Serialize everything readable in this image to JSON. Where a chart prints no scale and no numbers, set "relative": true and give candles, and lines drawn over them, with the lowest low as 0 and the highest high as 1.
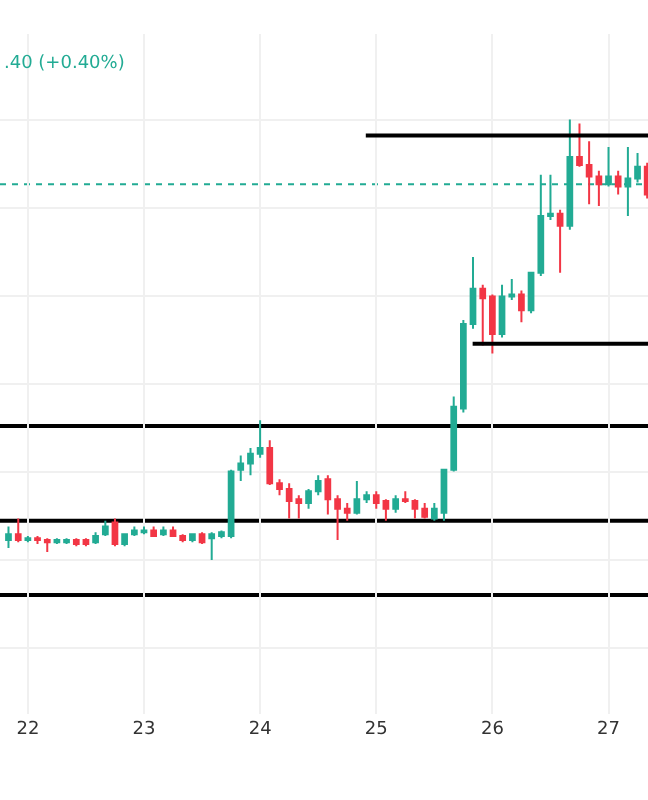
{
  "chart_data": {
    "type": "candlestick",
    "relative": true,
    "grid": true,
    "annotations": [
      ".40 (+0.40%)"
    ],
    "xlim": [
      21.76,
      27.34
    ],
    "xticks": [
      22,
      23,
      24,
      25,
      26,
      27
    ],
    "x": [
      21.833,
      21.917,
      22.0,
      22.083,
      22.167,
      22.25,
      22.333,
      22.417,
      22.5,
      22.583,
      22.667,
      22.75,
      22.833,
      22.917,
      23.0,
      23.083,
      23.167,
      23.25,
      23.333,
      23.417,
      23.5,
      23.583,
      23.667,
      23.75,
      23.833,
      23.917,
      24.0,
      24.083,
      24.167,
      24.25,
      24.333,
      24.417,
      24.5,
      24.583,
      24.667,
      24.75,
      24.833,
      24.917,
      25.0,
      25.083,
      25.167,
      25.25,
      25.333,
      25.417,
      25.5,
      25.583,
      25.667,
      25.75,
      25.833,
      25.917,
      26.0,
      26.083,
      26.167,
      26.25,
      26.333,
      26.417,
      26.5,
      26.583,
      26.667,
      26.75,
      26.833,
      26.917,
      27.0,
      27.083,
      27.167,
      27.25,
      27.333
    ],
    "colors": [
      "#22ab94",
      "#f23645",
      "#22ab94",
      "#f23645",
      "#f23645",
      "#22ab94",
      "#22ab94",
      "#f23645",
      "#f23645",
      "#22ab94",
      "#22ab94",
      "#f23645",
      "#22ab94",
      "#22ab94",
      "#22ab94",
      "#f23645",
      "#22ab94",
      "#f23645",
      "#f23645",
      "#22ab94",
      "#f23645",
      "#22ab94",
      "#22ab94",
      "#22ab94",
      "#22ab94",
      "#22ab94",
      "#22ab94",
      "#f23645",
      "#f23645",
      "#f23645",
      "#f23645",
      "#22ab94",
      "#22ab94",
      "#f23645",
      "#f23645",
      "#f23645",
      "#22ab94",
      "#22ab94",
      "#f23645",
      "#f23645",
      "#22ab94",
      "#f23645",
      "#f23645",
      "#f23645",
      "#22ab94",
      "#22ab94",
      "#22ab94",
      "#22ab94",
      "#22ab94",
      "#f23645",
      "#f23645",
      "#22ab94",
      "#22ab94",
      "#f23645",
      "#22ab94",
      "#22ab94",
      "#22ab94",
      "#f23645",
      "#22ab94",
      "#f23645",
      "#f23645",
      "#f23645",
      "#22ab94",
      "#f23645",
      "#22ab94",
      "#22ab94",
      "#f23645"
    ],
    "ohlc": [
      [
        0.045,
        0.076,
        0.027,
        0.058
      ],
      [
        0.058,
        0.094,
        0.04,
        0.045
      ],
      [
        0.045,
        0.054,
        0.04,
        0.049
      ],
      [
        0.049,
        0.054,
        0.036,
        0.045
      ],
      [
        0.045,
        0.049,
        0.018,
        0.04
      ],
      [
        0.04,
        0.049,
        0.036,
        0.045
      ],
      [
        0.04,
        0.049,
        0.036,
        0.045
      ],
      [
        0.045,
        0.049,
        0.031,
        0.036
      ],
      [
        0.045,
        0.049,
        0.031,
        0.036
      ],
      [
        0.04,
        0.063,
        0.036,
        0.054
      ],
      [
        0.058,
        0.089,
        0.054,
        0.076
      ],
      [
        0.085,
        0.094,
        0.031,
        0.036
      ],
      [
        0.036,
        0.058,
        0.031,
        0.058
      ],
      [
        0.058,
        0.076,
        0.054,
        0.067
      ],
      [
        0.063,
        0.076,
        0.058,
        0.067
      ],
      [
        0.067,
        0.076,
        0.054,
        0.054
      ],
      [
        0.058,
        0.076,
        0.054,
        0.067
      ],
      [
        0.067,
        0.076,
        0.054,
        0.054
      ],
      [
        0.054,
        0.058,
        0.04,
        0.045
      ],
      [
        0.045,
        0.058,
        0.04,
        0.058
      ],
      [
        0.058,
        0.063,
        0.036,
        0.04
      ],
      [
        0.049,
        0.063,
        0.0,
        0.058
      ],
      [
        0.054,
        0.067,
        0.049,
        0.063
      ],
      [
        0.054,
        0.205,
        0.049,
        0.201
      ],
      [
        0.205,
        0.237,
        0.179,
        0.219
      ],
      [
        0.219,
        0.254,
        0.192,
        0.241
      ],
      [
        0.241,
        0.317,
        0.232,
        0.254
      ],
      [
        0.254,
        0.272,
        0.17,
        0.174
      ],
      [
        0.174,
        0.183,
        0.147,
        0.161
      ],
      [
        0.161,
        0.174,
        0.094,
        0.134
      ],
      [
        0.138,
        0.147,
        0.094,
        0.129
      ],
      [
        0.129,
        0.161,
        0.116,
        0.156
      ],
      [
        0.156,
        0.192,
        0.147,
        0.179
      ],
      [
        0.183,
        0.192,
        0.103,
        0.138
      ],
      [
        0.138,
        0.147,
        0.045,
        0.116
      ],
      [
        0.116,
        0.129,
        0.089,
        0.107
      ],
      [
        0.107,
        0.179,
        0.103,
        0.138
      ],
      [
        0.138,
        0.156,
        0.129,
        0.147
      ],
      [
        0.147,
        0.156,
        0.116,
        0.129
      ],
      [
        0.134,
        0.138,
        0.089,
        0.116
      ],
      [
        0.116,
        0.147,
        0.107,
        0.138
      ],
      [
        0.138,
        0.156,
        0.129,
        0.134
      ],
      [
        0.134,
        0.138,
        0.094,
        0.116
      ],
      [
        0.116,
        0.129,
        0.094,
        0.098
      ],
      [
        0.094,
        0.129,
        0.089,
        0.116
      ],
      [
        0.107,
        0.205,
        0.089,
        0.205
      ],
      [
        0.205,
        0.371,
        0.201,
        0.348
      ],
      [
        0.344,
        0.545,
        0.335,
        0.536
      ],
      [
        0.536,
        0.688,
        0.525,
        0.616
      ],
      [
        0.616,
        0.625,
        0.487,
        0.594
      ],
      [
        0.598,
        0.603,
        0.469,
        0.513
      ],
      [
        0.513,
        0.625,
        0.505,
        0.598
      ],
      [
        0.598,
        0.638,
        0.59,
        0.603
      ],
      [
        0.603,
        0.612,
        0.54,
        0.567
      ],
      [
        0.567,
        0.652,
        0.56,
        0.652
      ],
      [
        0.652,
        0.875,
        0.645,
        0.781
      ],
      [
        0.781,
        0.875,
        0.772,
        0.786
      ],
      [
        0.786,
        0.795,
        0.652,
        0.759
      ],
      [
        0.759,
        1.0,
        0.75,
        0.915
      ],
      [
        0.915,
        0.991,
        0.893,
        0.897
      ],
      [
        0.897,
        0.951,
        0.808,
        0.871
      ],
      [
        0.871,
        0.884,
        0.804,
        0.853
      ],
      [
        0.853,
        0.938,
        0.848,
        0.871
      ],
      [
        0.871,
        0.884,
        0.83,
        0.848
      ],
      [
        0.848,
        0.938,
        0.781,
        0.866
      ],
      [
        0.866,
        0.924,
        0.857,
        0.893
      ],
      [
        0.893,
        0.902,
        0.821,
        0.83
      ]
    ],
    "series": [
      {
        "type": "line",
        "color": "#000000",
        "x": [
          24.91,
          27.34
        ],
        "values": [
          0.964,
          0.964
        ]
      },
      {
        "type": "line",
        "color": "#000000",
        "x": [
          25.83,
          27.34
        ],
        "values": [
          0.491,
          0.491
        ]
      }
    ],
    "ref_lines": [
      {
        "axis": "y",
        "value": 0.853,
        "color": "#22ab94",
        "line_style": "dotted"
      },
      {
        "axis": "y",
        "value": 0.304,
        "color": "#000000",
        "line_style": "solid"
      },
      {
        "axis": "y",
        "value": 0.089,
        "color": "#000000",
        "line_style": "solid"
      },
      {
        "axis": "y",
        "value": -0.08,
        "color": "#000000",
        "line_style": "solid"
      }
    ]
  }
}
